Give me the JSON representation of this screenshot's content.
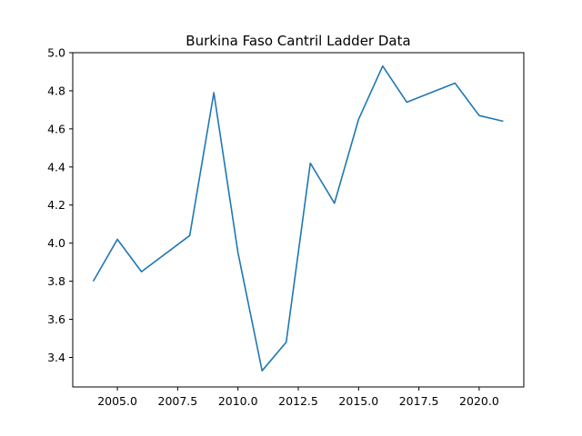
{
  "chart_data": {
    "type": "line",
    "title": "Burkina Faso Cantril Ladder Data",
    "xlabel": "",
    "ylabel": "",
    "xlim": [
      2003.15,
      2021.85
    ],
    "ylim": [
      3.245,
      5.0
    ],
    "x_ticks": [
      2005.0,
      2007.5,
      2010.0,
      2012.5,
      2015.0,
      2017.5,
      2020.0
    ],
    "x_tick_labels": [
      "2005.0",
      "2007.5",
      "2010.0",
      "2012.5",
      "2015.0",
      "2017.5",
      "2020.0"
    ],
    "y_ticks": [
      3.4,
      3.6,
      3.8,
      4.0,
      4.2,
      4.4,
      4.6,
      4.8,
      5.0
    ],
    "y_tick_labels": [
      "3.4",
      "3.6",
      "3.8",
      "4.0",
      "4.2",
      "4.4",
      "4.6",
      "4.8",
      "5.0"
    ],
    "grid": false,
    "legend": "none",
    "series": [
      {
        "color": "#1f77b4",
        "x": [
          2004,
          2005,
          2006,
          2008,
          2009,
          2010,
          2011,
          2012,
          2013,
          2014,
          2015,
          2016,
          2017,
          2019,
          2020,
          2021
        ],
        "values": [
          3.8,
          4.02,
          3.85,
          4.04,
          4.79,
          3.95,
          3.33,
          3.48,
          4.42,
          4.21,
          4.65,
          4.93,
          4.74,
          4.84,
          4.67,
          4.64
        ]
      }
    ]
  }
}
